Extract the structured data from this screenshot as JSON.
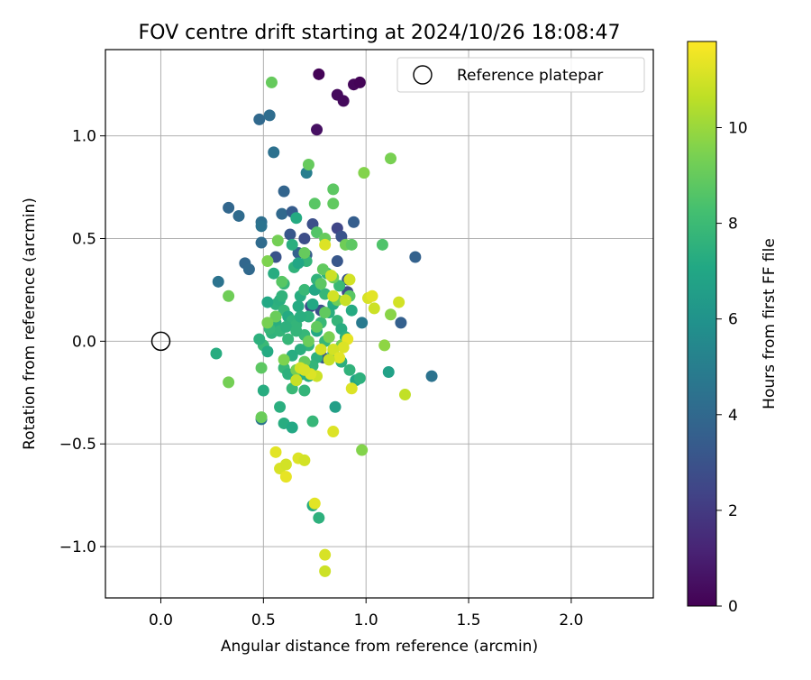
{
  "chart_data": {
    "type": "scatter",
    "title": "FOV centre drift starting at 2024/10/26 18:08:47",
    "xlabel": "Angular distance from reference (arcmin)",
    "ylabel": "Rotation from reference (arcmin)",
    "xlim": [
      -0.27,
      2.4
    ],
    "ylim": [
      -1.25,
      1.42
    ],
    "xticks": [
      0.0,
      0.5,
      1.0,
      1.5,
      2.0
    ],
    "xtick_labels": [
      "0.0",
      "0.5",
      "1.0",
      "1.5",
      "2.0"
    ],
    "yticks": [
      -1.0,
      -0.5,
      0.0,
      0.5,
      1.0
    ],
    "ytick_labels": [
      "−1.0",
      "−0.5",
      "0.0",
      "0.5",
      "1.0"
    ],
    "grid": true,
    "legend": {
      "position": "top-right",
      "entries": [
        "Reference platepar"
      ]
    },
    "reference_point": {
      "x": 0.0,
      "y": 0.0
    },
    "colorbar": {
      "label": "Hours from first FF file",
      "range": [
        0,
        11.8
      ],
      "ticks": [
        0,
        2,
        4,
        6,
        8,
        10
      ],
      "tick_labels": [
        "0",
        "2",
        "4",
        "6",
        "8",
        "10"
      ],
      "colormap": "viridis"
    },
    "points": [
      [
        0.77,
        1.3,
        0.1
      ],
      [
        0.86,
        1.2,
        0.3
      ],
      [
        0.94,
        1.25,
        0.2
      ],
      [
        0.97,
        1.26,
        0.1
      ],
      [
        0.89,
        1.17,
        0.3
      ],
      [
        0.76,
        1.03,
        0.5
      ],
      [
        0.48,
        1.08,
        4.0
      ],
      [
        0.53,
        1.1,
        4.2
      ],
      [
        0.55,
        0.92,
        4.4
      ],
      [
        0.71,
        0.82,
        5.0
      ],
      [
        0.6,
        0.73,
        3.8
      ],
      [
        0.33,
        0.65,
        3.9
      ],
      [
        0.38,
        0.61,
        4.1
      ],
      [
        0.59,
        0.62,
        4.0
      ],
      [
        0.64,
        0.63,
        3.4
      ],
      [
        0.74,
        0.57,
        2.9
      ],
      [
        0.49,
        0.58,
        4.3
      ],
      [
        0.49,
        0.56,
        4.5
      ],
      [
        0.63,
        0.52,
        3.2
      ],
      [
        0.7,
        0.5,
        2.8
      ],
      [
        0.49,
        0.48,
        4.1
      ],
      [
        0.56,
        0.41,
        3.0
      ],
      [
        0.41,
        0.38,
        3.9
      ],
      [
        0.43,
        0.35,
        4.0
      ],
      [
        0.28,
        0.29,
        4.5
      ],
      [
        0.86,
        0.55,
        2.5
      ],
      [
        0.88,
        0.51,
        3.0
      ],
      [
        0.86,
        0.39,
        3.2
      ],
      [
        0.94,
        0.58,
        3.5
      ],
      [
        0.91,
        0.3,
        3.0
      ],
      [
        0.91,
        0.24,
        2.6
      ],
      [
        1.24,
        0.41,
        3.7
      ],
      [
        1.17,
        0.09,
        3.6
      ],
      [
        1.32,
        -0.17,
        4.5
      ],
      [
        0.98,
        0.09,
        4.8
      ],
      [
        0.73,
        0.17,
        2.6
      ],
      [
        0.78,
        0.15,
        2.9
      ],
      [
        0.79,
        -0.08,
        3.4
      ],
      [
        0.49,
        -0.38,
        4.6
      ],
      [
        0.67,
        0.43,
        3.7
      ],
      [
        0.71,
        0.42,
        3.4
      ],
      [
        0.66,
        0.6,
        7.2
      ],
      [
        0.64,
        0.47,
        7.4
      ],
      [
        0.71,
        0.39,
        7.7
      ],
      [
        0.65,
        0.36,
        7.6
      ],
      [
        0.67,
        0.38,
        7.0
      ],
      [
        0.6,
        0.28,
        7.8
      ],
      [
        0.55,
        0.33,
        7.3
      ],
      [
        0.56,
        0.18,
        7.5
      ],
      [
        0.52,
        0.19,
        7.1
      ],
      [
        0.58,
        0.2,
        7.4
      ],
      [
        0.6,
        0.15,
        7.8
      ],
      [
        0.62,
        0.12,
        7.2
      ],
      [
        0.64,
        0.1,
        7.6
      ],
      [
        0.66,
        0.08,
        7.7
      ],
      [
        0.68,
        0.22,
        7.3
      ],
      [
        0.7,
        0.25,
        7.9
      ],
      [
        0.72,
        0.12,
        7.5
      ],
      [
        0.74,
        0.18,
        7.1
      ],
      [
        0.76,
        0.3,
        7.6
      ],
      [
        0.8,
        0.23,
        7.8
      ],
      [
        0.82,
        0.14,
        7.4
      ],
      [
        0.84,
        0.18,
        7.2
      ],
      [
        0.86,
        0.1,
        7.7
      ],
      [
        0.88,
        0.06,
        7.3
      ],
      [
        0.9,
        0.02,
        7.5
      ],
      [
        0.78,
        0.09,
        7.9
      ],
      [
        0.76,
        0.05,
        7.1
      ],
      [
        0.72,
        -0.02,
        7.6
      ],
      [
        0.7,
        0.03,
        7.8
      ],
      [
        0.68,
        -0.04,
        7.4
      ],
      [
        0.64,
        -0.07,
        7.3
      ],
      [
        0.6,
        -0.13,
        7.8
      ],
      [
        0.62,
        -0.16,
        7.5
      ],
      [
        0.66,
        -0.19,
        7.2
      ],
      [
        0.7,
        -0.24,
        7.7
      ],
      [
        0.64,
        -0.23,
        7.9
      ],
      [
        0.58,
        -0.32,
        7.4
      ],
      [
        0.6,
        -0.4,
        7.3
      ],
      [
        0.64,
        -0.42,
        7.1
      ],
      [
        0.74,
        -0.39,
        7.8
      ],
      [
        0.85,
        -0.32,
        6.6
      ],
      [
        1.11,
        -0.15,
        6.7
      ],
      [
        0.95,
        -0.19,
        7.0
      ],
      [
        0.92,
        -0.14,
        7.6
      ],
      [
        0.88,
        -0.1,
        7.4
      ],
      [
        0.84,
        -0.06,
        7.2
      ],
      [
        0.8,
        0.0,
        7.8
      ],
      [
        0.76,
        -0.08,
        7.5
      ],
      [
        0.74,
        -0.12,
        7.7
      ],
      [
        0.72,
        -0.17,
        7.3
      ],
      [
        0.54,
        0.04,
        7.6
      ],
      [
        0.5,
        -0.02,
        7.9
      ],
      [
        0.52,
        -0.05,
        7.2
      ],
      [
        0.56,
        0.09,
        7.4
      ],
      [
        0.58,
        0.05,
        7.7
      ],
      [
        0.48,
        0.01,
        7.5
      ],
      [
        0.5,
        -0.24,
        7.3
      ],
      [
        0.62,
        0.01,
        7.8
      ],
      [
        0.74,
        -0.8,
        7.3
      ],
      [
        0.77,
        -0.86,
        7.5
      ],
      [
        0.61,
        0.07,
        7.5
      ],
      [
        0.67,
        0.17,
        7.2
      ],
      [
        0.59,
        0.22,
        7.6
      ],
      [
        0.53,
        0.06,
        7.8
      ],
      [
        0.69,
        -0.16,
        7.4
      ],
      [
        0.75,
        0.25,
        7.0
      ],
      [
        0.81,
        0.33,
        7.6
      ],
      [
        0.87,
        0.27,
        7.9
      ],
      [
        0.93,
        0.15,
        7.2
      ],
      [
        0.97,
        -0.18,
        7.5
      ],
      [
        0.27,
        -0.06,
        7.3
      ],
      [
        0.66,
        0.05,
        7.7
      ],
      [
        0.68,
        0.12,
        7.4
      ],
      [
        0.54,
        1.26,
        9.0
      ],
      [
        0.72,
        0.86,
        9.0
      ],
      [
        1.12,
        0.89,
        9.4
      ],
      [
        0.99,
        0.82,
        9.6
      ],
      [
        0.84,
        0.74,
        8.8
      ],
      [
        0.75,
        0.67,
        8.7
      ],
      [
        0.84,
        0.67,
        8.9
      ],
      [
        0.76,
        0.53,
        8.6
      ],
      [
        0.8,
        0.5,
        9.0
      ],
      [
        0.9,
        0.47,
        9.2
      ],
      [
        0.93,
        0.47,
        8.8
      ],
      [
        1.08,
        0.47,
        8.5
      ],
      [
        0.57,
        0.49,
        9.3
      ],
      [
        0.52,
        0.39,
        9.5
      ],
      [
        0.7,
        0.43,
        9.0
      ],
      [
        0.79,
        0.35,
        8.9
      ],
      [
        0.84,
        0.31,
        9.1
      ],
      [
        0.59,
        0.29,
        8.7
      ],
      [
        0.78,
        0.28,
        8.8
      ],
      [
        0.33,
        0.22,
        9.2
      ],
      [
        0.33,
        -0.2,
        9.3
      ],
      [
        0.49,
        -0.37,
        9.1
      ],
      [
        0.49,
        -0.13,
        8.8
      ],
      [
        0.98,
        -0.53,
        9.6
      ],
      [
        1.09,
        -0.02,
        9.8
      ],
      [
        1.12,
        0.13,
        9.7
      ],
      [
        0.72,
        0.0,
        9.1
      ],
      [
        0.76,
        0.07,
        8.9
      ],
      [
        0.82,
        0.02,
        9.4
      ],
      [
        0.88,
        -0.02,
        9.2
      ],
      [
        0.7,
        -0.1,
        9.0
      ],
      [
        0.66,
        -0.14,
        9.3
      ],
      [
        0.56,
        0.12,
        9.1
      ],
      [
        0.6,
        -0.09,
        9.5
      ],
      [
        0.8,
        0.14,
        8.9
      ],
      [
        0.86,
        0.2,
        9.2
      ],
      [
        0.92,
        0.22,
        8.7
      ],
      [
        0.52,
        0.09,
        9.4
      ],
      [
        0.8,
        0.47,
        11.2
      ],
      [
        0.92,
        0.3,
        11.0
      ],
      [
        1.01,
        0.21,
        11.1
      ],
      [
        1.03,
        0.22,
        11.3
      ],
      [
        1.16,
        0.19,
        11.0
      ],
      [
        1.04,
        0.16,
        10.9
      ],
      [
        0.9,
        0.2,
        10.8
      ],
      [
        0.91,
        0.01,
        11.4
      ],
      [
        0.89,
        -0.03,
        11.2
      ],
      [
        0.84,
        -0.04,
        11.0
      ],
      [
        0.87,
        -0.08,
        11.3
      ],
      [
        0.82,
        -0.09,
        10.8
      ],
      [
        0.78,
        -0.04,
        11.1
      ],
      [
        0.84,
        0.22,
        11.0
      ],
      [
        0.83,
        0.32,
        10.9
      ],
      [
        0.93,
        -0.23,
        11.2
      ],
      [
        1.19,
        -0.26,
        10.7
      ],
      [
        0.76,
        -0.17,
        10.9
      ],
      [
        0.73,
        -0.16,
        11.2
      ],
      [
        0.68,
        -0.13,
        11.0
      ],
      [
        0.7,
        -0.14,
        11.1
      ],
      [
        0.66,
        -0.19,
        10.8
      ],
      [
        0.56,
        -0.54,
        11.3
      ],
      [
        0.58,
        -0.62,
        11.1
      ],
      [
        0.61,
        -0.6,
        11.0
      ],
      [
        0.61,
        -0.66,
        11.4
      ],
      [
        0.67,
        -0.57,
        11.2
      ],
      [
        0.7,
        -0.58,
        11.0
      ],
      [
        0.75,
        -0.79,
        11.3
      ],
      [
        0.8,
        -1.04,
        11.1
      ],
      [
        0.8,
        -1.12,
        10.9
      ],
      [
        0.84,
        -0.44,
        11.2
      ]
    ]
  }
}
